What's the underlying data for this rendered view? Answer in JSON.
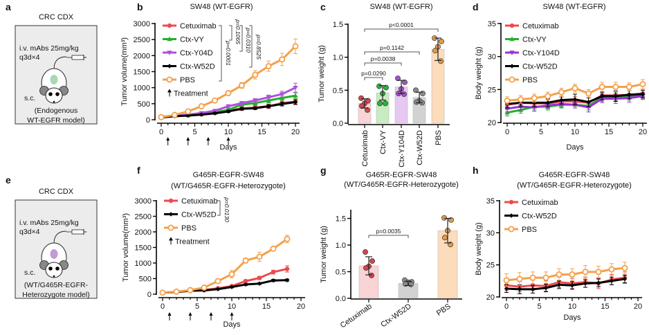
{
  "schematics": [
    {
      "id": "a",
      "letter": "a",
      "title": "CRC CDX",
      "dose": "i.v. mAbs 25mg/kg",
      "schedule": "q3d×4",
      "route": "s.c.",
      "model": [
        "(Endogenous",
        "WT-EGFR model)"
      ],
      "tumor_color": "#a8d8b5"
    },
    {
      "id": "e",
      "letter": "e",
      "title": "CRC CDX",
      "dose": "i.v. mAbs 25mg/kg",
      "schedule": "q3d×4",
      "route": "s.c.",
      "model": [
        "(WT/G465R-EGFR-",
        "Heterozygote model)"
      ],
      "tumor_color": "#c49bd6"
    }
  ],
  "chart_data": [
    {
      "id": "b",
      "letter": "b",
      "type": "line",
      "title": [
        "SW48 (WT-EGFR)"
      ],
      "xlabel": "Days",
      "ylabel": "Tumor volume(mm³)",
      "xlim": [
        0,
        20
      ],
      "ylim": [
        0,
        3000
      ],
      "xticks": [
        0,
        5,
        10,
        15,
        20
      ],
      "yticks": [
        0,
        500,
        1000,
        1500,
        2000,
        2500,
        3000
      ],
      "x": [
        0,
        2,
        4,
        6,
        8,
        10,
        12,
        14,
        16,
        18,
        20
      ],
      "series": [
        {
          "name": "Cetuximab",
          "color": "#ec4a4f",
          "marker": "circle",
          "values": [
            80,
            120,
            140,
            170,
            220,
            280,
            350,
            380,
            420,
            520,
            560
          ],
          "errors": [
            20,
            20,
            25,
            30,
            30,
            40,
            60,
            60,
            70,
            80,
            90
          ]
        },
        {
          "name": "Ctx-VY",
          "color": "#22b02a",
          "marker": "triangle-up",
          "values": [
            80,
            120,
            140,
            180,
            230,
            310,
            470,
            520,
            600,
            680,
            750
          ],
          "errors": [
            20,
            20,
            25,
            30,
            30,
            40,
            50,
            60,
            70,
            80,
            90
          ]
        },
        {
          "name": "Ctx-Y04D",
          "color": "#b04fdc",
          "marker": "triangle-down",
          "values": [
            90,
            130,
            160,
            210,
            280,
            420,
            520,
            600,
            700,
            800,
            1000
          ],
          "errors": [
            20,
            20,
            25,
            30,
            40,
            50,
            50,
            60,
            70,
            90,
            140
          ]
        },
        {
          "name": "Ctx-W52D",
          "color": "#000000",
          "marker": "diamond",
          "values": [
            70,
            110,
            130,
            160,
            200,
            260,
            340,
            360,
            420,
            490,
            550
          ],
          "errors": [
            15,
            20,
            20,
            25,
            30,
            35,
            40,
            40,
            50,
            60,
            70
          ]
        },
        {
          "name": "PBS",
          "color": "#f4a04a",
          "marker": "open-circle",
          "values": [
            80,
            150,
            260,
            420,
            600,
            830,
            1070,
            1400,
            1670,
            1880,
            2290
          ],
          "errors": [
            20,
            30,
            40,
            50,
            60,
            70,
            90,
            130,
            160,
            190,
            230
          ]
        }
      ],
      "treatment_days": [
        1,
        4,
        7,
        10
      ],
      "treatment_label": "Treatment",
      "stats": [
        {
          "label": "p=0.0001"
        },
        {
          "label": "p=0.1065"
        },
        {
          "label": "p=0.0310"
        },
        {
          "label": "p=0.8525"
        }
      ]
    },
    {
      "id": "c",
      "letter": "c",
      "type": "bar",
      "title": [
        "SW48 (WT-EGFR)"
      ],
      "ylabel": "Tumor weight (g)",
      "ylim": [
        0,
        1.5
      ],
      "yticks": [
        0.0,
        0.5,
        1.0,
        1.5
      ],
      "categories": [
        "Cetuximab",
        "Ctx-VY",
        "Ctx-Y104D",
        "Ctx-W52D",
        "PBS"
      ],
      "values": [
        0.3,
        0.46,
        0.55,
        0.39,
        1.12
      ],
      "sd": [
        0.07,
        0.11,
        0.1,
        0.08,
        0.17
      ],
      "points": [
        [
          0.38,
          0.34,
          0.3,
          0.26,
          0.2
        ],
        [
          0.56,
          0.54,
          0.45,
          0.3,
          0.3
        ],
        [
          0.68,
          0.62,
          0.52,
          0.45,
          0.44
        ],
        [
          0.5,
          0.45,
          0.34,
          0.32,
          0.31
        ],
        [
          1.29,
          1.24,
          1.16,
          1.1,
          0.94
        ]
      ],
      "bar_colors": [
        "#f9d3d5",
        "#c8ecc2",
        "#e6c8f2",
        "#d2d2d2",
        "#fcdcbb"
      ],
      "point_colors": [
        "#d9444f",
        "#2db338",
        "#a455c8",
        "#8c8c8c",
        "#e39b45"
      ],
      "stats": [
        {
          "from": 0,
          "to": 4,
          "label": "p<0.0001"
        },
        {
          "from": 0,
          "to": 3,
          "label": "p=0.1142"
        },
        {
          "from": 0,
          "to": 2,
          "label": "p=0.0038"
        },
        {
          "from": 0,
          "to": 1,
          "label": "p=0.0290"
        }
      ]
    },
    {
      "id": "d",
      "letter": "d",
      "type": "line",
      "title": [
        "SW48 (WT-EGFR)"
      ],
      "xlabel": "Days",
      "ylabel": "Body weight (g)",
      "xlim": [
        0,
        20
      ],
      "ylim": [
        20,
        35
      ],
      "xticks": [
        0,
        5,
        10,
        15,
        20
      ],
      "yticks": [
        20,
        25,
        30,
        35
      ],
      "x": [
        0,
        2,
        4,
        6,
        8,
        10,
        12,
        14,
        16,
        18,
        20
      ],
      "series": [
        {
          "name": "Cetuximab",
          "color": "#ec4a4f",
          "marker": "circle",
          "values": [
            22.7,
            23.0,
            22.9,
            22.9,
            23.2,
            23.2,
            23.0,
            24.1,
            24.1,
            24.2,
            24.4
          ],
          "errors": [
            0.6,
            0.6,
            0.6,
            0.6,
            0.6,
            0.7,
            0.7,
            0.6,
            0.6,
            0.6,
            0.5
          ]
        },
        {
          "name": "Ctx-VY",
          "color": "#22b02a",
          "marker": "triangle-up",
          "values": [
            21.5,
            21.9,
            22.4,
            22.4,
            22.7,
            22.7,
            22.5,
            23.8,
            23.9,
            23.9,
            24.0
          ],
          "errors": [
            0.5,
            0.5,
            0.5,
            0.5,
            0.5,
            0.5,
            0.6,
            0.6,
            0.6,
            0.5,
            0.5
          ]
        },
        {
          "name": "Ctx-Y104D",
          "color": "#9a32d4",
          "marker": "triangle-down",
          "values": [
            22.1,
            22.4,
            22.3,
            22.6,
            22.8,
            22.7,
            22.3,
            23.6,
            23.6,
            23.7,
            24.0
          ],
          "errors": [
            0.5,
            0.5,
            0.6,
            0.5,
            0.5,
            0.5,
            0.7,
            0.6,
            0.7,
            0.6,
            0.5
          ]
        },
        {
          "name": "Ctx-W52D",
          "color": "#000000",
          "marker": "diamond",
          "values": [
            22.8,
            23.0,
            23.0,
            23.0,
            23.4,
            23.5,
            23.1,
            24.0,
            24.0,
            24.2,
            24.3
          ],
          "errors": [
            0.6,
            0.6,
            0.6,
            0.6,
            0.6,
            0.8,
            0.7,
            0.6,
            0.8,
            0.6,
            0.6
          ]
        },
        {
          "name": "PBS",
          "color": "#f4a04a",
          "marker": "open-circle",
          "values": [
            23.3,
            23.5,
            23.7,
            24.0,
            24.6,
            25.2,
            24.4,
            25.4,
            25.4,
            25.4,
            25.8
          ],
          "errors": [
            0.6,
            0.6,
            0.6,
            0.6,
            0.6,
            0.6,
            0.6,
            0.7,
            0.7,
            0.6,
            0.7
          ]
        }
      ]
    },
    {
      "id": "f",
      "letter": "f",
      "type": "line",
      "title": [
        "G465R-EGFR-SW48",
        "(WT/G465R-EGFR-Heterozygote)"
      ],
      "xlabel": "Days",
      "ylabel": "Tumor volume(mm³)",
      "xlim": [
        0,
        20
      ],
      "ylim": [
        0,
        3000
      ],
      "xticks": [
        0,
        5,
        10,
        15,
        20
      ],
      "yticks": [
        0,
        500,
        1000,
        1500,
        2000,
        2500,
        3000
      ],
      "x": [
        0,
        2,
        4,
        6,
        8,
        10,
        12,
        14,
        16,
        18
      ],
      "series": [
        {
          "name": "Cetuximab",
          "color": "#ec4a4f",
          "marker": "circle",
          "values": [
            50,
            70,
            110,
            130,
            190,
            260,
            420,
            520,
            710,
            810
          ],
          "errors": [
            10,
            15,
            20,
            20,
            25,
            30,
            40,
            50,
            60,
            100
          ]
        },
        {
          "name": "Ctx-W52D",
          "color": "#000000",
          "marker": "diamond",
          "values": [
            50,
            70,
            110,
            120,
            160,
            230,
            310,
            340,
            440,
            450
          ],
          "errors": [
            10,
            15,
            15,
            20,
            20,
            25,
            30,
            30,
            35,
            35
          ]
        },
        {
          "name": "PBS",
          "color": "#f4a04a",
          "marker": "open-circle",
          "values": [
            50,
            80,
            130,
            210,
            420,
            640,
            1080,
            1200,
            1460,
            1770
          ],
          "errors": [
            10,
            15,
            20,
            30,
            50,
            120,
            80,
            150,
            60,
            120
          ]
        }
      ],
      "treatment_days": [
        1,
        4,
        7,
        10
      ],
      "treatment_label": "Treatment",
      "stats": [
        {
          "label": "p=0.0130"
        }
      ]
    },
    {
      "id": "g",
      "letter": "g",
      "type": "bar",
      "title": [
        "G465R-EGFR-SW48",
        "(WT/G465R-EGFR-Heterozygote)"
      ],
      "ylabel": "Tumor weight (g)",
      "ylim": [
        0,
        1.65
      ],
      "yticks": [
        0.0,
        0.5,
        1.0,
        1.5
      ],
      "categories": [
        "Cetuximab",
        "Ctx-W52D",
        "PBS"
      ],
      "values": [
        0.61,
        0.28,
        1.27
      ],
      "sd": [
        0.17,
        0.04,
        0.23
      ],
      "points": [
        [
          0.87,
          0.7,
          0.6,
          0.57,
          0.43
        ],
        [
          0.34,
          0.31,
          0.3,
          0.27,
          0.26
        ],
        [
          1.51,
          1.47,
          1.27,
          1.14,
          1.01
        ]
      ],
      "bar_colors": [
        "#f9d3d5",
        "#d2d2d2",
        "#fcdcbb"
      ],
      "point_colors": [
        "#d9444f",
        "#8c8c8c",
        "#e39b45"
      ],
      "stats": [
        {
          "from": 0,
          "to": 1,
          "label": "p=0.0035"
        }
      ]
    },
    {
      "id": "h",
      "letter": "h",
      "type": "line",
      "title": [
        "G465R-EGFR-SW48",
        "(WT/G465R-EGFR-Heterozygote)"
      ],
      "xlabel": "Days",
      "ylabel": "Body weight (g)",
      "xlim": [
        0,
        20
      ],
      "ylim": [
        20,
        35
      ],
      "xticks": [
        0,
        5,
        10,
        15,
        20
      ],
      "yticks": [
        20,
        25,
        30,
        35
      ],
      "x": [
        0,
        2,
        4,
        6,
        8,
        10,
        12,
        14,
        16,
        18
      ],
      "series": [
        {
          "name": "Cetuximab",
          "color": "#ec4a4f",
          "marker": "circle",
          "values": [
            21.8,
            21.6,
            21.8,
            21.7,
            22.3,
            22.1,
            22.3,
            22.1,
            22.7,
            23.0
          ],
          "errors": [
            0.8,
            0.8,
            0.8,
            0.8,
            0.8,
            0.8,
            0.8,
            0.8,
            0.8,
            0.9
          ]
        },
        {
          "name": "Ctx-W52D",
          "color": "#000000",
          "marker": "diamond",
          "values": [
            21.3,
            21.2,
            21.2,
            21.4,
            21.9,
            21.8,
            22.1,
            22.2,
            22.5,
            22.8
          ],
          "errors": [
            0.6,
            0.7,
            0.6,
            0.6,
            0.6,
            0.6,
            0.6,
            0.6,
            0.6,
            0.6
          ]
        },
        {
          "name": "PBS",
          "color": "#f4a04a",
          "marker": "open-circle",
          "values": [
            22.6,
            22.8,
            23.0,
            23.0,
            23.5,
            23.5,
            23.9,
            23.9,
            24.3,
            24.5
          ],
          "errors": [
            1.0,
            1.0,
            0.9,
            0.9,
            0.9,
            0.9,
            1.0,
            0.9,
            0.9,
            0.9
          ]
        }
      ]
    }
  ]
}
